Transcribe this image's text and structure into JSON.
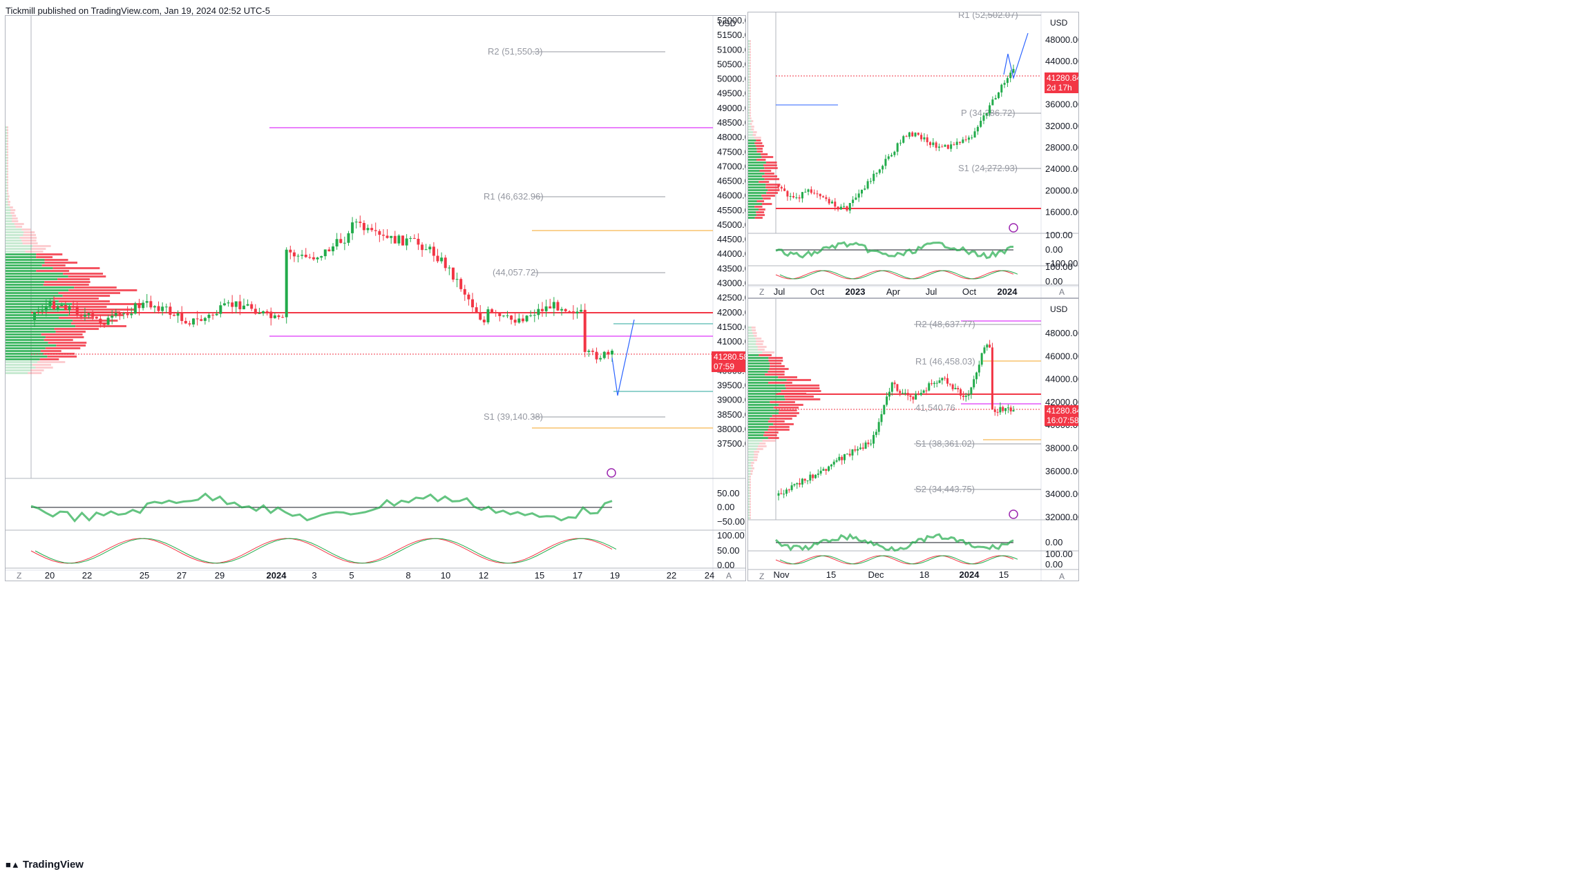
{
  "header": {
    "text": "Tickmill published on TradingView.com, Jan 19, 2024 02:52 UTC-5"
  },
  "footer": {
    "brand": "TradingView",
    "logo": "tradingview-logo"
  },
  "colors": {
    "bull": "#22ab4b",
    "bear": "#f23645",
    "magenta": "#d500f9",
    "orange": "#f5a623",
    "blue": "#2962ff",
    "teal": "#26a69a"
  },
  "main": {
    "currency": "USD",
    "last_price": "41280.58",
    "countdown": "07:59",
    "price_ticks": [
      "52000.00",
      "51500.00",
      "51000.00",
      "50500.00",
      "50000.00",
      "49500.00",
      "49000.00",
      "48500.00",
      "48000.00",
      "47500.00",
      "47000.00",
      "46500.00",
      "46000.00",
      "45500.00",
      "45000.00",
      "44500.00",
      "44000.00",
      "43500.00",
      "43000.00",
      "42500.00",
      "42000.00",
      "41500.00",
      "41000.00",
      "40500.00",
      "40000.00",
      "39500.00",
      "39000.00",
      "38500.00",
      "38000.00",
      "37500.00"
    ],
    "levels": {
      "r2": "R2 (51,550.3)",
      "r1": "R1 (46,632.96)",
      "p": "(44,057.72)",
      "s1": "S1 (39,140.38)"
    },
    "osc1_ticks": [
      "50.00",
      "0.00",
      "−50.00"
    ],
    "osc2_ticks": [
      "100.00",
      "50.00",
      "0.00"
    ],
    "date_ticks": [
      {
        "t": "20",
        "b": false
      },
      {
        "t": "22",
        "b": false
      },
      {
        "t": "25",
        "b": false
      },
      {
        "t": "27",
        "b": false
      },
      {
        "t": "29",
        "b": false
      },
      {
        "t": "2024",
        "b": true
      },
      {
        "t": "3",
        "b": false
      },
      {
        "t": "5",
        "b": false
      },
      {
        "t": "8",
        "b": false
      },
      {
        "t": "10",
        "b": false
      },
      {
        "t": "12",
        "b": false
      },
      {
        "t": "15",
        "b": false
      },
      {
        "t": "17",
        "b": false
      },
      {
        "t": "19",
        "b": false
      },
      {
        "t": "22",
        "b": false
      },
      {
        "t": "24",
        "b": false
      }
    ],
    "z": "Z",
    "a": "A"
  },
  "weekly": {
    "currency": "USD",
    "last_price": "41280.84",
    "countdown": "2d 17h",
    "price_ticks": [
      "48000.00",
      "44000.00",
      "40000.00",
      "36000.00",
      "32000.00",
      "28000.00",
      "24000.00",
      "20000.00",
      "16000.00"
    ],
    "levels": {
      "r1": "R1 (52,502.07)",
      "p": "P (34,386.72)",
      "s1": "S1 (24,272.93)"
    },
    "osc1_ticks": [
      "100.00",
      "0.00",
      "−100.00"
    ],
    "osc2_ticks": [
      "100.00",
      "0.00"
    ],
    "osc2_left": "100.00",
    "osc2_left0": "0.00",
    "date_ticks": [
      {
        "t": "Jul",
        "b": false
      },
      {
        "t": "Oct",
        "b": false
      },
      {
        "t": "2023",
        "b": true
      },
      {
        "t": "Apr",
        "b": false
      },
      {
        "t": "Jul",
        "b": false
      },
      {
        "t": "Oct",
        "b": false
      },
      {
        "t": "2024",
        "b": true
      }
    ],
    "z": "Z",
    "a": "A"
  },
  "daily": {
    "currency": "USD",
    "last_price": "41280.84",
    "countdown": "16:07:58",
    "price_ticks": [
      "48000.00",
      "46000.00",
      "44000.00",
      "42000.00",
      "40000.00",
      "38000.00",
      "36000.00",
      "34000.00",
      "32000.00"
    ],
    "levels": {
      "r2": "R2 (48,637.77)",
      "r1": "R1 (46,458.03)",
      "p": "41,540.76",
      "s1": "S1 (38,361.02)",
      "s2": "S2 (34,443.75)"
    },
    "osc1_ticks": [
      "0.00"
    ],
    "osc2_ticks": [
      "100.00",
      "0.00"
    ],
    "osc2_left": "100.00",
    "osc2_left0": "0.00",
    "date_ticks": [
      {
        "t": "Nov",
        "b": false
      },
      {
        "t": "15",
        "b": false
      },
      {
        "t": "Dec",
        "b": false
      },
      {
        "t": "18",
        "b": false
      },
      {
        "t": "2024",
        "b": true
      },
      {
        "t": "15",
        "b": false
      }
    ],
    "z": "Z",
    "a": "A"
  }
}
